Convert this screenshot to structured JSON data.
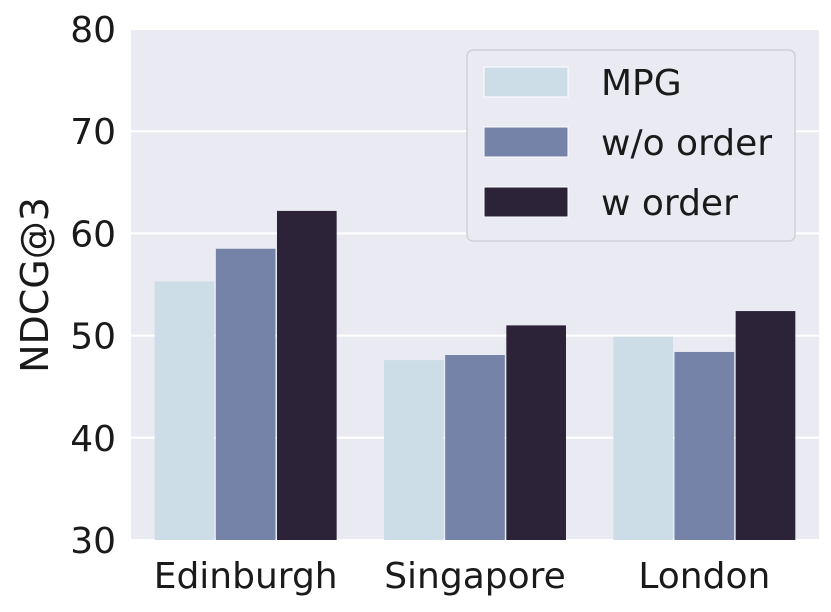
{
  "chart_data": {
    "type": "bar",
    "title": "",
    "xlabel": "",
    "ylabel": "NDCG@3",
    "categories": [
      "Edinburgh",
      "Singapore",
      "London"
    ],
    "series": [
      {
        "name": "MPG",
        "values": [
          55.3,
          47.6,
          49.9
        ],
        "color": "#ccdde7"
      },
      {
        "name": "w/o order",
        "values": [
          58.5,
          48.1,
          48.4
        ],
        "color": "#7683a8"
      },
      {
        "name": "w order",
        "values": [
          62.2,
          51.0,
          52.4
        ],
        "color": "#2d2339"
      }
    ],
    "ylim": [
      30,
      80
    ],
    "yticks": [
      30,
      40,
      50,
      60,
      70,
      80
    ],
    "grid": true,
    "legend_position": "top-right",
    "background": "#eaeaf2"
  }
}
